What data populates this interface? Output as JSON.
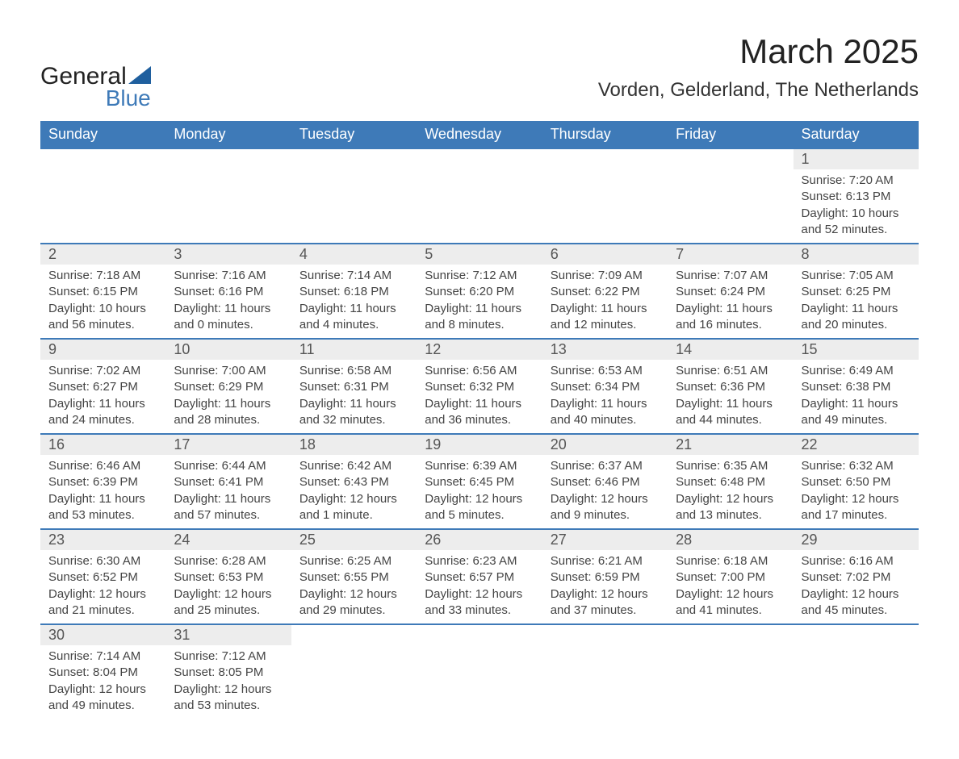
{
  "brand": {
    "name_part1": "General",
    "name_part2": "Blue",
    "part1_color": "#222222",
    "part2_color": "#3e7ab8",
    "shape_color": "#1f5f9e"
  },
  "colors": {
    "header_bg": "#3e7ab8",
    "header_text": "#ffffff",
    "daynum_bg": "#ededed",
    "daynum_text": "#555555",
    "body_text": "#444444",
    "rule": "#3e7ab8",
    "page_bg": "#ffffff"
  },
  "fonts": {
    "month_title_size_pt": 32,
    "location_size_pt": 18,
    "weekday_size_pt": 14,
    "daynum_size_pt": 14,
    "body_size_pt": 11
  },
  "title": "March 2025",
  "location": "Vorden, Gelderland, The Netherlands",
  "weekdays": [
    "Sunday",
    "Monday",
    "Tuesday",
    "Wednesday",
    "Thursday",
    "Friday",
    "Saturday"
  ],
  "weeks": [
    [
      {
        "empty": true
      },
      {
        "empty": true
      },
      {
        "empty": true
      },
      {
        "empty": true
      },
      {
        "empty": true
      },
      {
        "empty": true
      },
      {
        "day": "1",
        "sunrise": "Sunrise: 7:20 AM",
        "sunset": "Sunset: 6:13 PM",
        "daylight": "Daylight: 10 hours and 52 minutes."
      }
    ],
    [
      {
        "day": "2",
        "sunrise": "Sunrise: 7:18 AM",
        "sunset": "Sunset: 6:15 PM",
        "daylight": "Daylight: 10 hours and 56 minutes."
      },
      {
        "day": "3",
        "sunrise": "Sunrise: 7:16 AM",
        "sunset": "Sunset: 6:16 PM",
        "daylight": "Daylight: 11 hours and 0 minutes."
      },
      {
        "day": "4",
        "sunrise": "Sunrise: 7:14 AM",
        "sunset": "Sunset: 6:18 PM",
        "daylight": "Daylight: 11 hours and 4 minutes."
      },
      {
        "day": "5",
        "sunrise": "Sunrise: 7:12 AM",
        "sunset": "Sunset: 6:20 PM",
        "daylight": "Daylight: 11 hours and 8 minutes."
      },
      {
        "day": "6",
        "sunrise": "Sunrise: 7:09 AM",
        "sunset": "Sunset: 6:22 PM",
        "daylight": "Daylight: 11 hours and 12 minutes."
      },
      {
        "day": "7",
        "sunrise": "Sunrise: 7:07 AM",
        "sunset": "Sunset: 6:24 PM",
        "daylight": "Daylight: 11 hours and 16 minutes."
      },
      {
        "day": "8",
        "sunrise": "Sunrise: 7:05 AM",
        "sunset": "Sunset: 6:25 PM",
        "daylight": "Daylight: 11 hours and 20 minutes."
      }
    ],
    [
      {
        "day": "9",
        "sunrise": "Sunrise: 7:02 AM",
        "sunset": "Sunset: 6:27 PM",
        "daylight": "Daylight: 11 hours and 24 minutes."
      },
      {
        "day": "10",
        "sunrise": "Sunrise: 7:00 AM",
        "sunset": "Sunset: 6:29 PM",
        "daylight": "Daylight: 11 hours and 28 minutes."
      },
      {
        "day": "11",
        "sunrise": "Sunrise: 6:58 AM",
        "sunset": "Sunset: 6:31 PM",
        "daylight": "Daylight: 11 hours and 32 minutes."
      },
      {
        "day": "12",
        "sunrise": "Sunrise: 6:56 AM",
        "sunset": "Sunset: 6:32 PM",
        "daylight": "Daylight: 11 hours and 36 minutes."
      },
      {
        "day": "13",
        "sunrise": "Sunrise: 6:53 AM",
        "sunset": "Sunset: 6:34 PM",
        "daylight": "Daylight: 11 hours and 40 minutes."
      },
      {
        "day": "14",
        "sunrise": "Sunrise: 6:51 AM",
        "sunset": "Sunset: 6:36 PM",
        "daylight": "Daylight: 11 hours and 44 minutes."
      },
      {
        "day": "15",
        "sunrise": "Sunrise: 6:49 AM",
        "sunset": "Sunset: 6:38 PM",
        "daylight": "Daylight: 11 hours and 49 minutes."
      }
    ],
    [
      {
        "day": "16",
        "sunrise": "Sunrise: 6:46 AM",
        "sunset": "Sunset: 6:39 PM",
        "daylight": "Daylight: 11 hours and 53 minutes."
      },
      {
        "day": "17",
        "sunrise": "Sunrise: 6:44 AM",
        "sunset": "Sunset: 6:41 PM",
        "daylight": "Daylight: 11 hours and 57 minutes."
      },
      {
        "day": "18",
        "sunrise": "Sunrise: 6:42 AM",
        "sunset": "Sunset: 6:43 PM",
        "daylight": "Daylight: 12 hours and 1 minute."
      },
      {
        "day": "19",
        "sunrise": "Sunrise: 6:39 AM",
        "sunset": "Sunset: 6:45 PM",
        "daylight": "Daylight: 12 hours and 5 minutes."
      },
      {
        "day": "20",
        "sunrise": "Sunrise: 6:37 AM",
        "sunset": "Sunset: 6:46 PM",
        "daylight": "Daylight: 12 hours and 9 minutes."
      },
      {
        "day": "21",
        "sunrise": "Sunrise: 6:35 AM",
        "sunset": "Sunset: 6:48 PM",
        "daylight": "Daylight: 12 hours and 13 minutes."
      },
      {
        "day": "22",
        "sunrise": "Sunrise: 6:32 AM",
        "sunset": "Sunset: 6:50 PM",
        "daylight": "Daylight: 12 hours and 17 minutes."
      }
    ],
    [
      {
        "day": "23",
        "sunrise": "Sunrise: 6:30 AM",
        "sunset": "Sunset: 6:52 PM",
        "daylight": "Daylight: 12 hours and 21 minutes."
      },
      {
        "day": "24",
        "sunrise": "Sunrise: 6:28 AM",
        "sunset": "Sunset: 6:53 PM",
        "daylight": "Daylight: 12 hours and 25 minutes."
      },
      {
        "day": "25",
        "sunrise": "Sunrise: 6:25 AM",
        "sunset": "Sunset: 6:55 PM",
        "daylight": "Daylight: 12 hours and 29 minutes."
      },
      {
        "day": "26",
        "sunrise": "Sunrise: 6:23 AM",
        "sunset": "Sunset: 6:57 PM",
        "daylight": "Daylight: 12 hours and 33 minutes."
      },
      {
        "day": "27",
        "sunrise": "Sunrise: 6:21 AM",
        "sunset": "Sunset: 6:59 PM",
        "daylight": "Daylight: 12 hours and 37 minutes."
      },
      {
        "day": "28",
        "sunrise": "Sunrise: 6:18 AM",
        "sunset": "Sunset: 7:00 PM",
        "daylight": "Daylight: 12 hours and 41 minutes."
      },
      {
        "day": "29",
        "sunrise": "Sunrise: 6:16 AM",
        "sunset": "Sunset: 7:02 PM",
        "daylight": "Daylight: 12 hours and 45 minutes."
      }
    ],
    [
      {
        "day": "30",
        "sunrise": "Sunrise: 7:14 AM",
        "sunset": "Sunset: 8:04 PM",
        "daylight": "Daylight: 12 hours and 49 minutes."
      },
      {
        "day": "31",
        "sunrise": "Sunrise: 7:12 AM",
        "sunset": "Sunset: 8:05 PM",
        "daylight": "Daylight: 12 hours and 53 minutes."
      },
      {
        "empty": true
      },
      {
        "empty": true
      },
      {
        "empty": true
      },
      {
        "empty": true
      },
      {
        "empty": true
      }
    ]
  ]
}
